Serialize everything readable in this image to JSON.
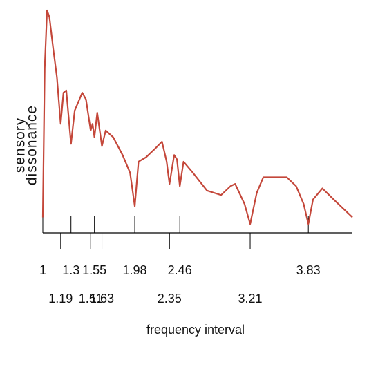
{
  "chart_data": {
    "type": "line",
    "y_label": [
      "sensory",
      "dissonance"
    ],
    "x_label": "frequency interval",
    "xlim": [
      1,
      4.3
    ],
    "ylim": [
      0,
      1
    ],
    "xticks_upper": [
      1,
      1.3,
      1.55,
      1.98,
      2.46,
      3.83
    ],
    "xticks_lower": [
      1.19,
      1.51,
      1.63,
      2.35,
      3.21
    ],
    "series": [
      {
        "color": "#c4473a",
        "x": [
          1.0,
          1.02,
          1.045,
          1.07,
          1.11,
          1.15,
          1.19,
          1.22,
          1.25,
          1.3,
          1.34,
          1.42,
          1.46,
          1.51,
          1.53,
          1.55,
          1.58,
          1.63,
          1.67,
          1.75,
          1.85,
          1.93,
          1.98,
          2.02,
          2.1,
          2.2,
          2.27,
          2.32,
          2.35,
          2.4,
          2.43,
          2.46,
          2.5,
          2.6,
          2.75,
          2.9,
          3.0,
          3.05,
          3.15,
          3.21,
          3.28,
          3.35,
          3.45,
          3.6,
          3.7,
          3.78,
          3.83,
          3.88,
          3.98,
          4.1,
          4.2,
          4.3
        ],
        "values": [
          0.07,
          0.74,
          1.0,
          0.97,
          0.83,
          0.7,
          0.49,
          0.63,
          0.64,
          0.4,
          0.55,
          0.63,
          0.6,
          0.46,
          0.49,
          0.43,
          0.54,
          0.39,
          0.46,
          0.43,
          0.35,
          0.27,
          0.12,
          0.32,
          0.34,
          0.38,
          0.41,
          0.32,
          0.22,
          0.35,
          0.33,
          0.21,
          0.32,
          0.27,
          0.19,
          0.17,
          0.21,
          0.22,
          0.13,
          0.04,
          0.18,
          0.25,
          0.25,
          0.25,
          0.21,
          0.13,
          0.04,
          0.15,
          0.2,
          0.15,
          0.11,
          0.07
        ]
      }
    ]
  }
}
